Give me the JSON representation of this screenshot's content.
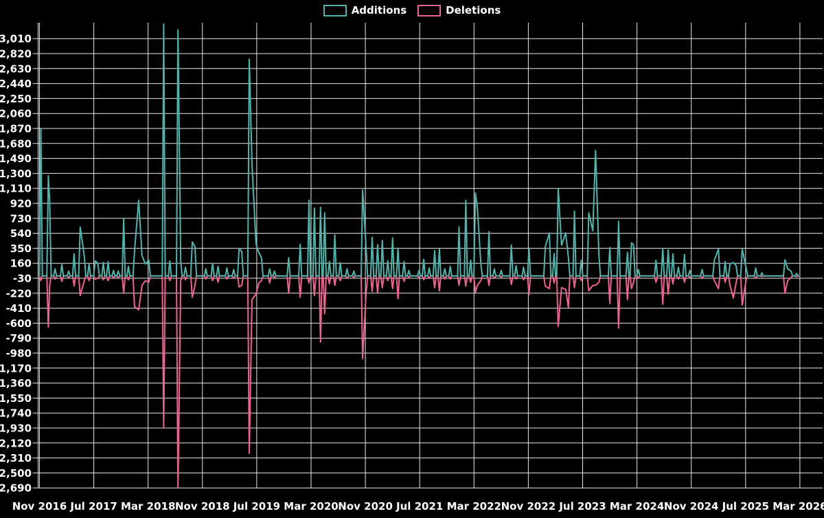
{
  "chart_data": {
    "type": "line",
    "title": "",
    "legend_position": "top-center",
    "grid": true,
    "background_color": "#000000",
    "grid_color": "#e8e8e8",
    "text_color": "#ffffff",
    "series": [
      {
        "name": "Additions",
        "color": "#4db6ac"
      },
      {
        "name": "Deletions",
        "color": "#f06292"
      }
    ],
    "x_axis": {
      "tick_labels": [
        "Nov 2016",
        "Jul 2017",
        "Mar 2018",
        "Nov 2018",
        "Jul 2019",
        "Mar 2020",
        "Nov 2020",
        "Jul 2021",
        "Mar 2022",
        "Nov 2022",
        "Jul 2023",
        "Mar 2024",
        "Nov 2024",
        "Jul 2025",
        "Mar 2026"
      ],
      "months_per_tick": 8,
      "total_months": 112
    },
    "y_axis": {
      "tick_values": [
        3010,
        2820,
        2630,
        2440,
        2250,
        2060,
        1870,
        1680,
        1490,
        1300,
        1110,
        920,
        730,
        540,
        350,
        160,
        -30,
        -220,
        -410,
        -600,
        -790,
        -980,
        -1170,
        -1360,
        -1550,
        -1740,
        -1930,
        -2120,
        -2310,
        -2500,
        -2690
      ],
      "tick_labels": [
        "3,010",
        "2,820",
        "2,630",
        "2,440",
        "2,250",
        "2,060",
        "1,870",
        "1,680",
        "1,490",
        "1,300",
        "1,110",
        "920",
        "730",
        "540",
        "350",
        "160",
        "-30",
        "-220",
        "-410",
        "-600",
        "-790",
        "-980",
        "-1,170",
        "-1,360",
        "-1,550",
        "-1,740",
        "-1,930",
        "-2,120",
        "-2,310",
        "-2,500",
        "-2,690"
      ],
      "step": 190
    },
    "samples_format": [
      "months_since_nov_2016",
      "additions",
      "deletions"
    ],
    "samples": [
      [
        0.0,
        0,
        0
      ],
      [
        0.2,
        1860,
        -60
      ],
      [
        1.3,
        1270,
        -650
      ],
      [
        1.5,
        950,
        -120
      ],
      [
        2.3,
        90,
        -40
      ],
      [
        3.3,
        150,
        -70
      ],
      [
        4.3,
        60,
        -20
      ],
      [
        5.1,
        280,
        -130
      ],
      [
        6.0,
        620,
        -250
      ],
      [
        6.6,
        250,
        -60
      ],
      [
        7.3,
        150,
        -60
      ],
      [
        8.2,
        190,
        -40
      ],
      [
        8.6,
        160,
        -30
      ],
      [
        9.4,
        170,
        -50
      ],
      [
        10.1,
        180,
        -60
      ],
      [
        10.9,
        70,
        -30
      ],
      [
        11.6,
        60,
        -20
      ],
      [
        12.4,
        730,
        -220
      ],
      [
        13.1,
        120,
        -50
      ],
      [
        14.0,
        310,
        -390
      ],
      [
        14.6,
        960,
        -430
      ],
      [
        15.1,
        260,
        -120
      ],
      [
        15.6,
        150,
        -60
      ],
      [
        16.1,
        200,
        -80
      ],
      [
        18.3,
        3195,
        -1930
      ],
      [
        19.2,
        190,
        -60
      ],
      [
        20.4,
        3120,
        -2690
      ],
      [
        20.8,
        180,
        -60
      ],
      [
        21.5,
        110,
        -50
      ],
      [
        22.5,
        430,
        -270
      ],
      [
        22.9,
        370,
        -120
      ],
      [
        24.5,
        90,
        -40
      ],
      [
        25.5,
        160,
        -60
      ],
      [
        26.3,
        120,
        -80
      ],
      [
        27.6,
        100,
        -40
      ],
      [
        28.6,
        80,
        -30
      ],
      [
        29.4,
        350,
        -140
      ],
      [
        29.8,
        310,
        -120
      ],
      [
        30.9,
        2750,
        -2250
      ],
      [
        31.3,
        1410,
        -300
      ],
      [
        31.9,
        400,
        -230
      ],
      [
        32.3,
        300,
        -90
      ],
      [
        32.7,
        230,
        -60
      ],
      [
        33.9,
        90,
        -90
      ],
      [
        34.6,
        60,
        -20
      ],
      [
        36.7,
        230,
        -220
      ],
      [
        38.4,
        400,
        -270
      ],
      [
        39.7,
        960,
        -90
      ],
      [
        40.5,
        860,
        -250
      ],
      [
        41.4,
        870,
        -840
      ],
      [
        42.0,
        800,
        -480
      ],
      [
        42.7,
        180,
        -100
      ],
      [
        43.5,
        520,
        -120
      ],
      [
        44.3,
        170,
        -60
      ],
      [
        45.3,
        90,
        -30
      ],
      [
        46.3,
        60,
        -20
      ],
      [
        47.6,
        1090,
        -1050
      ],
      [
        48.1,
        360,
        -230
      ],
      [
        49.0,
        490,
        -195
      ],
      [
        49.8,
        395,
        -210
      ],
      [
        50.5,
        450,
        -150
      ],
      [
        51.3,
        190,
        -60
      ],
      [
        52.0,
        480,
        -160
      ],
      [
        52.8,
        350,
        -290
      ],
      [
        53.7,
        180,
        -70
      ],
      [
        54.4,
        70,
        -20
      ],
      [
        55.9,
        70,
        -20
      ],
      [
        56.6,
        210,
        -50
      ],
      [
        57.4,
        100,
        -30
      ],
      [
        58.2,
        320,
        -150
      ],
      [
        58.9,
        340,
        -190
      ],
      [
        59.7,
        90,
        -40
      ],
      [
        60.5,
        120,
        -40
      ],
      [
        61.8,
        620,
        -120
      ],
      [
        62.8,
        960,
        -130
      ],
      [
        63.5,
        200,
        -80
      ],
      [
        64.2,
        1050,
        -210
      ],
      [
        64.5,
        870,
        -120
      ],
      [
        65.0,
        160,
        -60
      ],
      [
        66.2,
        560,
        -120
      ],
      [
        67.0,
        90,
        -30
      ],
      [
        68.0,
        70,
        -20
      ],
      [
        69.5,
        390,
        -110
      ],
      [
        70.2,
        130,
        -40
      ],
      [
        71.3,
        110,
        -50
      ],
      [
        72.1,
        350,
        -240
      ],
      [
        74.5,
        370,
        -130
      ],
      [
        75.1,
        545,
        -160
      ],
      [
        75.8,
        285,
        -90
      ],
      [
        76.4,
        1110,
        -640
      ],
      [
        76.9,
        390,
        -150
      ],
      [
        77.5,
        545,
        -170
      ],
      [
        77.9,
        240,
        -400
      ],
      [
        78.8,
        820,
        -150
      ],
      [
        79.8,
        200,
        -60
      ],
      [
        80.9,
        800,
        -190
      ],
      [
        81.5,
        570,
        -120
      ],
      [
        81.9,
        1590,
        -120
      ],
      [
        82.4,
        260,
        -80
      ],
      [
        84.0,
        360,
        -350
      ],
      [
        85.3,
        690,
        -660
      ],
      [
        86.6,
        300,
        -300
      ],
      [
        87.2,
        420,
        -160
      ],
      [
        87.5,
        390,
        -80
      ],
      [
        88.2,
        80,
        -30
      ],
      [
        90.8,
        200,
        -80
      ],
      [
        91.8,
        350,
        -360
      ],
      [
        92.6,
        330,
        -230
      ],
      [
        93.3,
        280,
        -100
      ],
      [
        94.1,
        110,
        -40
      ],
      [
        95.0,
        270,
        -80
      ],
      [
        95.8,
        70,
        -20
      ],
      [
        97.6,
        80,
        -30
      ],
      [
        99.4,
        200,
        -60
      ],
      [
        100.0,
        340,
        -160
      ],
      [
        101.0,
        180,
        -80
      ],
      [
        101.7,
        150,
        -120
      ],
      [
        102.2,
        170,
        -280
      ],
      [
        102.6,
        130,
        -90
      ],
      [
        103.5,
        340,
        -370
      ],
      [
        104.1,
        90,
        -40
      ],
      [
        105.5,
        100,
        -30
      ],
      [
        106.4,
        40,
        -10
      ],
      [
        109.8,
        205,
        -220
      ],
      [
        110.2,
        90,
        -60
      ],
      [
        110.7,
        60,
        -20
      ],
      [
        111.5,
        30,
        -10
      ],
      [
        111.8,
        0,
        0
      ]
    ]
  }
}
